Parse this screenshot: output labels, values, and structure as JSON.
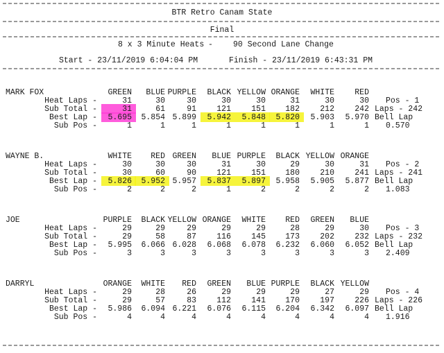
{
  "header": {
    "title": "BTR Retro Canam State",
    "stage": "Final",
    "format": "8 x 3 Minute Heats",
    "separator": "-",
    "lane_change": "90 Second Lane Change",
    "start": "Start - 23/11/2019 6:04:04 PM",
    "finish": "Finish - 23/11/2019 6:43:31 PM"
  },
  "racers": [
    {
      "name": "MARK FOX",
      "lanes": [
        "GREEN",
        "BLUE",
        "PURPLE",
        "BLACK",
        "YELLOW",
        "ORANGE",
        "WHITE",
        "RED"
      ],
      "rows": [
        {
          "label": "Heat Laps -",
          "values": [
            "31",
            "30",
            "30",
            "30",
            "30",
            "31",
            "30",
            "30"
          ]
        },
        {
          "label": "Sub Total -",
          "values": [
            "31",
            "61",
            "91",
            "121",
            "151",
            "182",
            "212",
            "242"
          ]
        },
        {
          "label": "Best Lap -",
          "values": [
            "5.695",
            "5.854",
            "5.899",
            "5.942",
            "5.848",
            "5.820",
            "5.903",
            "5.970"
          ]
        },
        {
          "label": "Sub Pos -",
          "values": [
            "1",
            "1",
            "1",
            "1",
            "1",
            "1",
            "1",
            "1"
          ]
        }
      ],
      "summary": [
        "Pos - 1",
        "Laps - 242",
        "Bell Lap",
        "0.570"
      ]
    },
    {
      "name": "WAYNE B.",
      "lanes": [
        "WHITE",
        "RED",
        "GREEN",
        "BLUE",
        "PURPLE",
        "BLACK",
        "YELLOW",
        "ORANGE"
      ],
      "rows": [
        {
          "label": "Heat Laps -",
          "values": [
            "30",
            "30",
            "30",
            "31",
            "30",
            "29",
            "30",
            "31"
          ]
        },
        {
          "label": "Sub Total -",
          "values": [
            "30",
            "60",
            "90",
            "121",
            "151",
            "180",
            "210",
            "241"
          ]
        },
        {
          "label": "Best Lap -",
          "values": [
            "5.826",
            "5.952",
            "5.957",
            "5.837",
            "5.897",
            "5.958",
            "5.905",
            "5.877"
          ]
        },
        {
          "label": "Sub Pos -",
          "values": [
            "2",
            "2",
            "2",
            "1",
            "2",
            "2",
            "2",
            "2"
          ]
        }
      ],
      "summary": [
        "Pos - 2",
        "Laps - 241",
        "Bell Lap",
        "1.083"
      ]
    },
    {
      "name": "JOE",
      "lanes": [
        "PURPLE",
        "BLACK",
        "YELLOW",
        "ORANGE",
        "WHITE",
        "RED",
        "GREEN",
        "BLUE"
      ],
      "rows": [
        {
          "label": "Heat Laps -",
          "values": [
            "29",
            "29",
            "29",
            "29",
            "29",
            "28",
            "29",
            "30"
          ]
        },
        {
          "label": "Sub Total -",
          "values": [
            "29",
            "58",
            "87",
            "116",
            "145",
            "173",
            "202",
            "232"
          ]
        },
        {
          "label": "Best Lap -",
          "values": [
            "5.995",
            "6.066",
            "6.028",
            "6.068",
            "6.078",
            "6.232",
            "6.060",
            "6.052"
          ]
        },
        {
          "label": "Sub Pos -",
          "values": [
            "3",
            "3",
            "3",
            "3",
            "3",
            "3",
            "3",
            "3"
          ]
        }
      ],
      "summary": [
        "Pos - 3",
        "Laps - 232",
        "Bell Lap",
        "2.409"
      ]
    },
    {
      "name": "DARRYL",
      "lanes": [
        "ORANGE",
        "WHITE",
        "RED",
        "GREEN",
        "BLUE",
        "PURPLE",
        "BLACK",
        "YELLOW"
      ],
      "rows": [
        {
          "label": "Heat Laps -",
          "values": [
            "29",
            "28",
            "26",
            "29",
            "29",
            "29",
            "27",
            "29"
          ]
        },
        {
          "label": "Sub Total -",
          "values": [
            "29",
            "57",
            "83",
            "112",
            "141",
            "170",
            "197",
            "226"
          ]
        },
        {
          "label": "Best Lap -",
          "values": [
            "5.986",
            "6.094",
            "6.221",
            "6.076",
            "6.115",
            "6.204",
            "6.342",
            "6.097"
          ]
        },
        {
          "label": "Sub Pos -",
          "values": [
            "4",
            "4",
            "4",
            "4",
            "4",
            "4",
            "4",
            "4"
          ]
        }
      ],
      "summary": [
        "Pos - 4",
        "Laps - 226",
        "Bell Lap",
        "1.916"
      ]
    }
  ]
}
